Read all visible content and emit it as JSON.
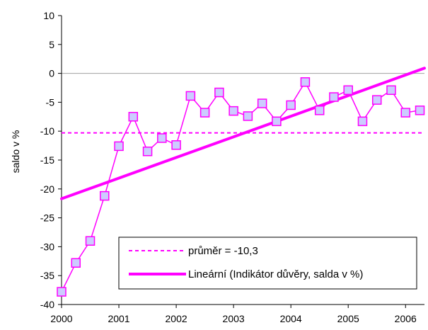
{
  "chart_data": {
    "type": "line",
    "title": "",
    "xlabel": "",
    "ylabel": "saldo v %",
    "ylim": [
      -40,
      10
    ],
    "yticks": [
      10,
      5,
      0,
      -5,
      -10,
      -15,
      -20,
      -25,
      -30,
      -35,
      -40
    ],
    "ytick_labels": [
      "10",
      "5",
      "0",
      "-5",
      "-10",
      "-15",
      "-20",
      "-25",
      "-30",
      "-35",
      "-40"
    ],
    "xlim": [
      2000,
      2006.33
    ],
    "xticks": [
      2000,
      2001,
      2002,
      2003,
      2004,
      2005,
      2006
    ],
    "xtick_labels": [
      "2000",
      "2001",
      "2002",
      "2003",
      "2004",
      "2005",
      "2006"
    ],
    "grid": false,
    "legend_position": "bottom-right",
    "colors": {
      "series_line": "#ff00ff",
      "marker_fill": "#ccccff",
      "marker_stroke": "#ff00ff",
      "mean_line": "#ff00ff",
      "trend_line": "#ff00ff",
      "axis": "#000000",
      "zero_line": "#a0a0a0"
    },
    "series": [
      {
        "marker": "square",
        "x": [
          2000.0,
          2000.25,
          2000.5,
          2000.75,
          2001.0,
          2001.25,
          2001.5,
          2001.75,
          2002.0,
          2002.25,
          2002.5,
          2002.75,
          2003.0,
          2003.25,
          2003.5,
          2003.75,
          2004.0,
          2004.25,
          2004.5,
          2004.75,
          2005.0,
          2005.25,
          2005.5,
          2005.75,
          2006.0,
          2006.25
        ],
        "values": [
          -37.8,
          -32.8,
          -29.0,
          -21.2,
          -12.6,
          -7.5,
          -13.5,
          -11.2,
          -12.4,
          -3.9,
          -6.8,
          -3.3,
          -6.5,
          -7.4,
          -5.2,
          -8.3,
          -5.5,
          -1.5,
          -6.4,
          -4.1,
          -2.9,
          -8.3,
          -4.6,
          -2.9,
          -6.8,
          -6.4
        ]
      }
    ],
    "reference_lines": [
      {
        "name": "průměr = -10,3",
        "style": "dashed",
        "value": -10.3
      },
      {
        "name": "Lineární (Indikátor důvěry, salda v %)",
        "style": "solid-thick",
        "x": [
          2000.0,
          2006.33
        ],
        "values": [
          -21.7,
          0.9
        ]
      }
    ]
  }
}
